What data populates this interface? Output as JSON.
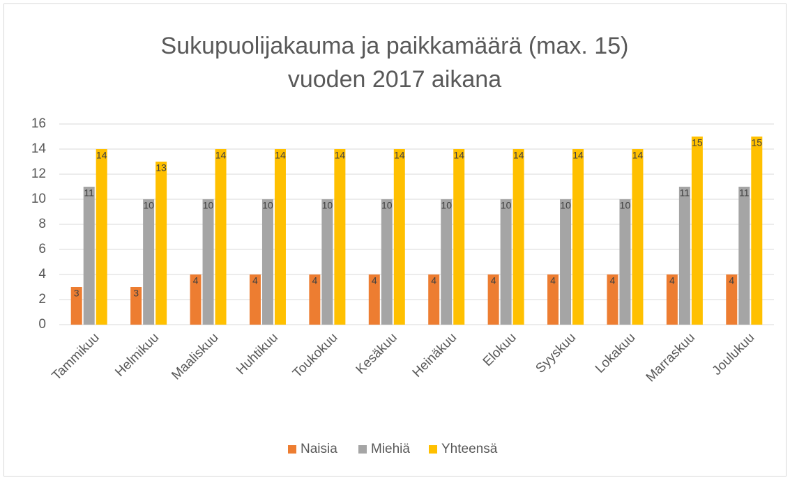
{
  "chart_data": {
    "type": "bar",
    "title": [
      "Sukupuolijakauma ja paikkamäärä (max. 15)",
      "vuoden 2017 aikana"
    ],
    "categories": [
      "Tammikuu",
      "Helmikuu",
      "Maaliskuu",
      "Huhtikuu",
      "Toukokuu",
      "Kesäkuu",
      "Heinäkuu",
      "Elokuu",
      "Syyskuu",
      "Lokakuu",
      "Marraskuu",
      "Joulukuu"
    ],
    "series": [
      {
        "name": "Naisia",
        "color": "#ED7D31",
        "values": [
          3,
          3,
          4,
          4,
          4,
          4,
          4,
          4,
          4,
          4,
          4,
          4
        ]
      },
      {
        "name": "Miehiä",
        "color": "#A5A5A5",
        "values": [
          11,
          10,
          10,
          10,
          10,
          10,
          10,
          10,
          10,
          10,
          11,
          11
        ]
      },
      {
        "name": "Yhteensä",
        "color": "#FFC000",
        "values": [
          14,
          13,
          14,
          14,
          14,
          14,
          14,
          14,
          14,
          14,
          15,
          15
        ]
      }
    ],
    "ylim": [
      0,
      16
    ],
    "yticks": [
      0,
      2,
      4,
      6,
      8,
      10,
      12,
      14,
      16
    ],
    "grid": true,
    "legend": "bottom"
  }
}
